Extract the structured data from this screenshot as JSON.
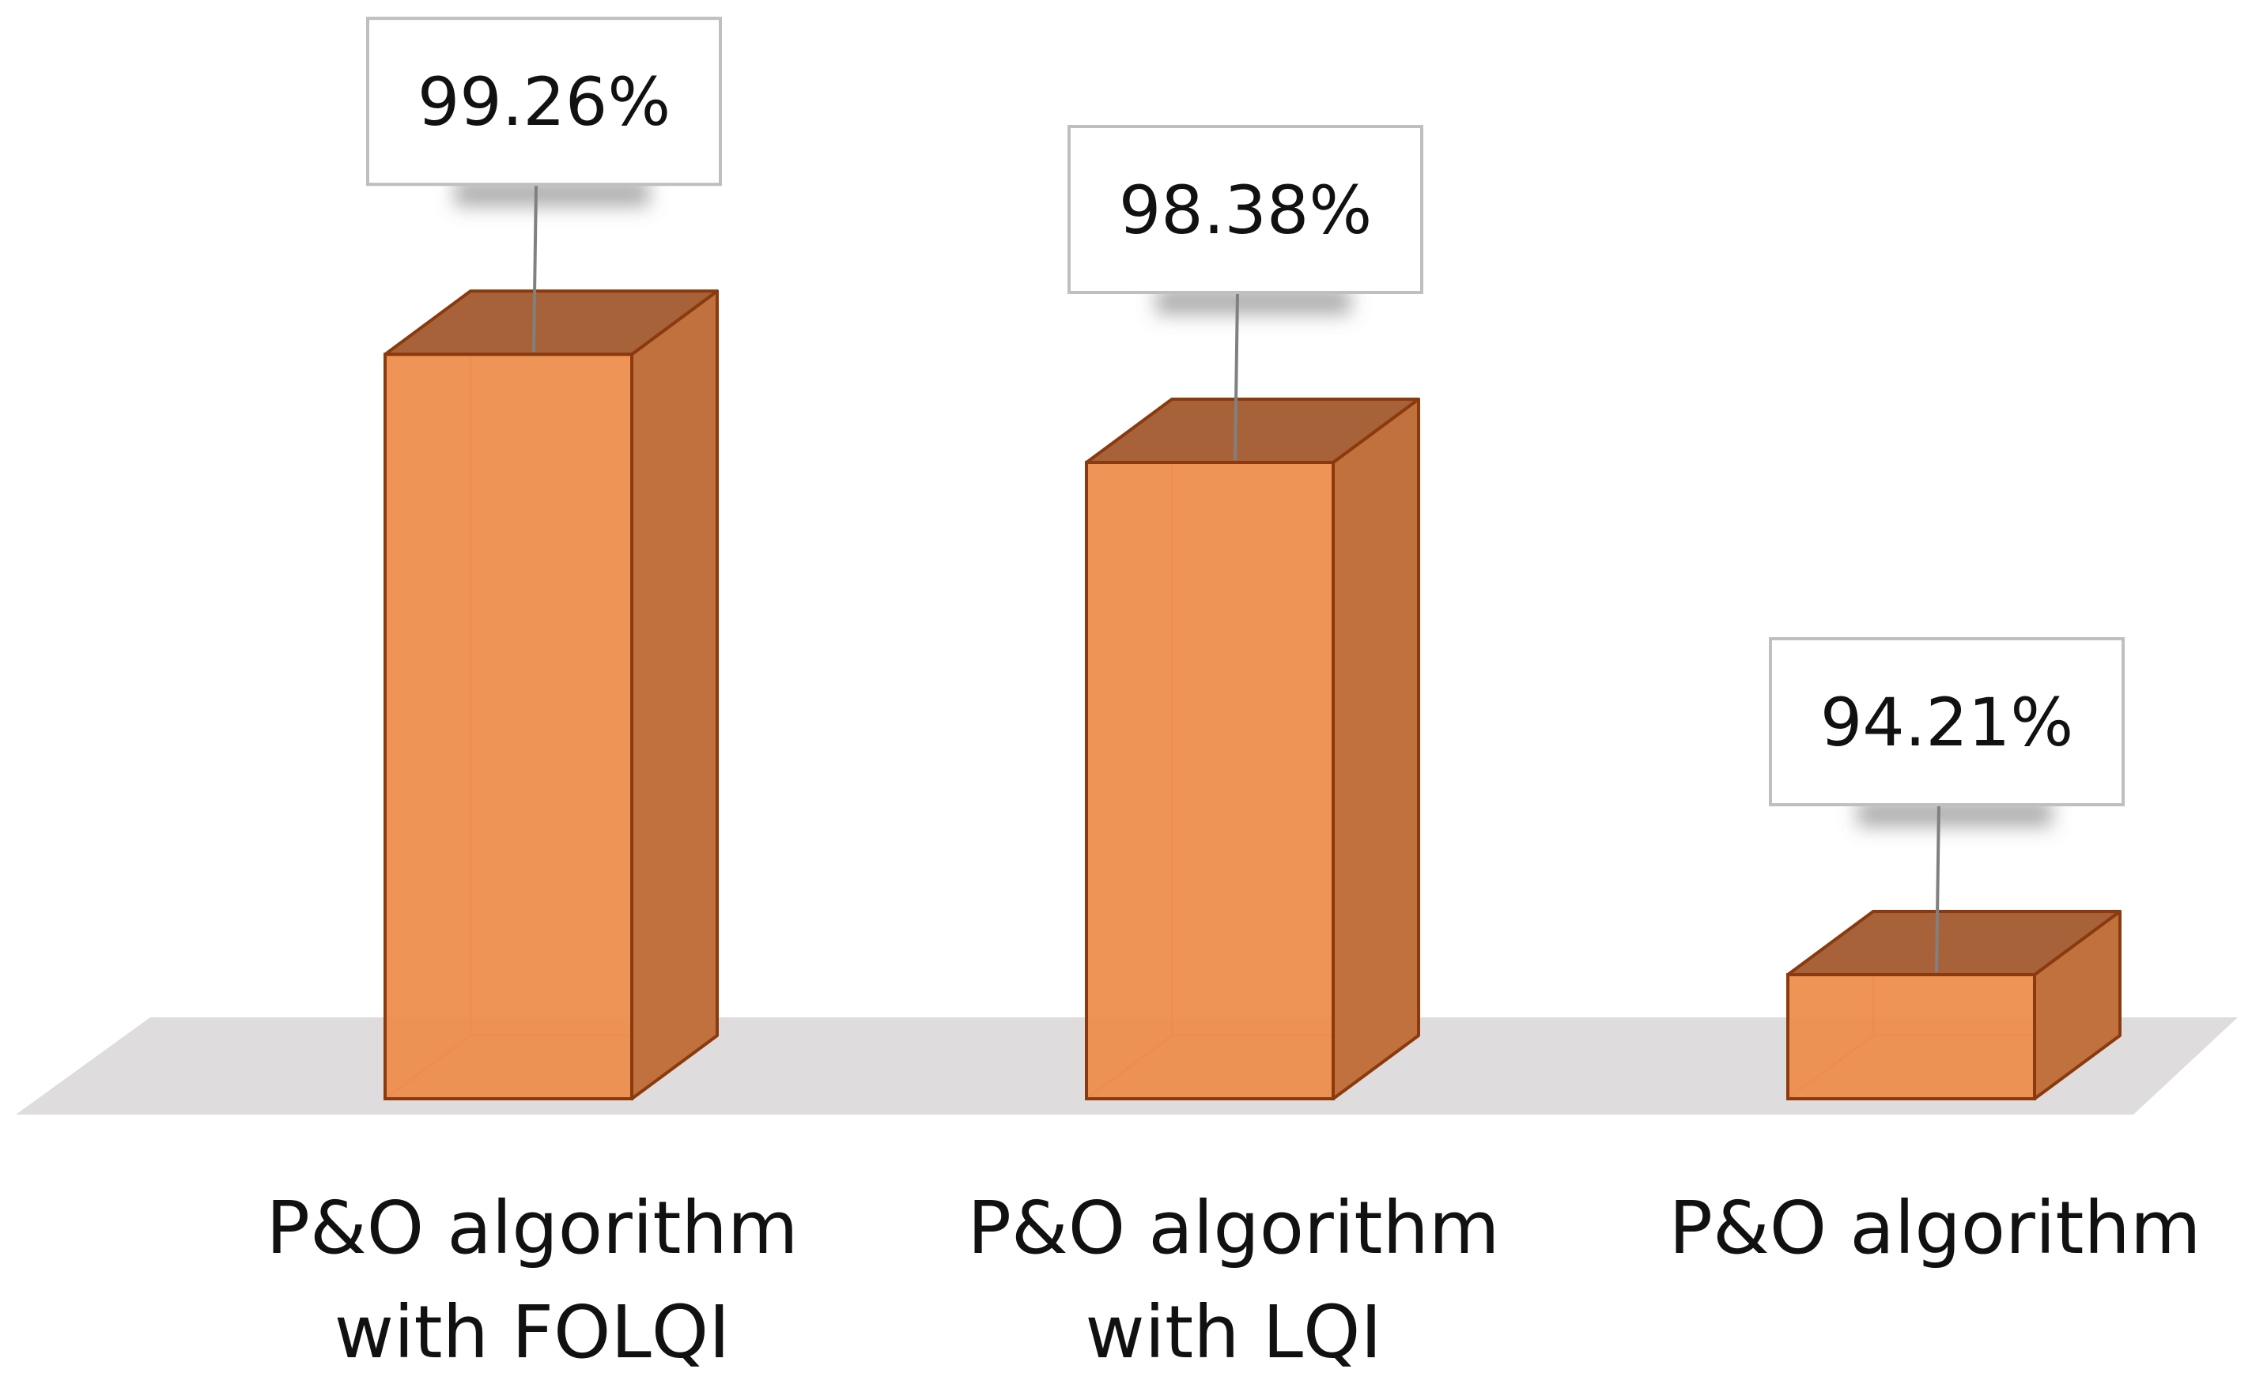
{
  "chart_data": {
    "type": "bar",
    "style": "3d-column",
    "categories": [
      [
        "P&O algorithm",
        "with FOLQI"
      ],
      [
        "P&O algorithm",
        "with LQI"
      ],
      [
        "P&O algorithm"
      ]
    ],
    "values": [
      99.26,
      98.38,
      94.21
    ],
    "data_labels": [
      "99.26%",
      "98.38%",
      "94.21%"
    ],
    "ylim": [
      93.2,
      100.6
    ],
    "grid": false,
    "legend": "none",
    "colors": {
      "front": "#ee8c4a",
      "side": "#c0713d",
      "top": "#a8623a",
      "edge": "#8b3a0e",
      "floor": "#dedcdd",
      "callout_border": "#bfbfbf",
      "leader": "#808080"
    }
  }
}
